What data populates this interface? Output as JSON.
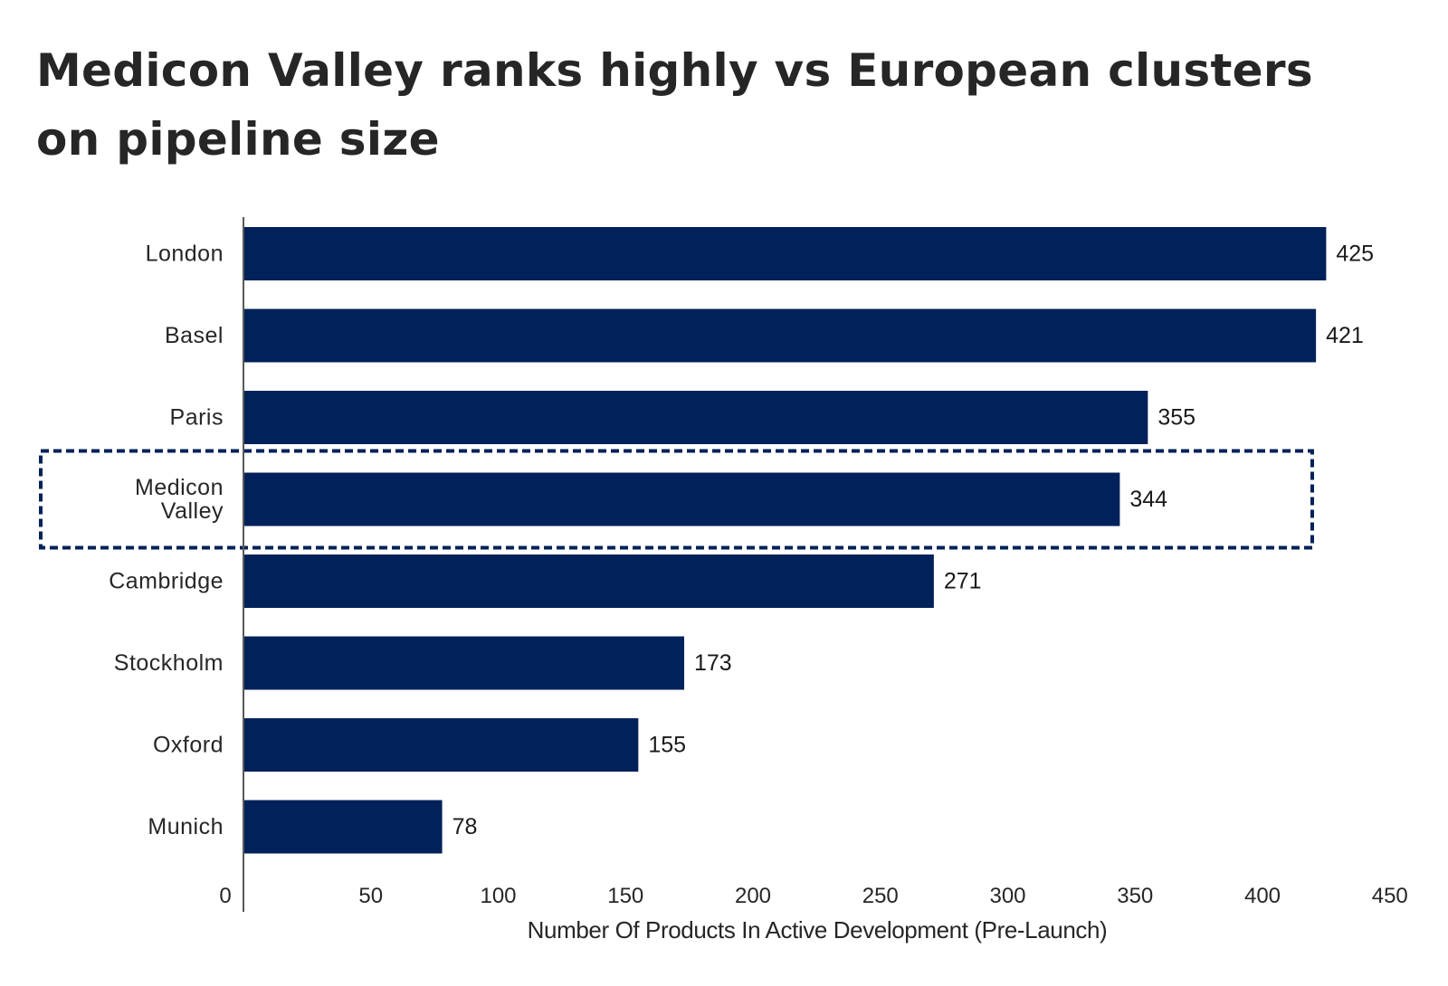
{
  "title": "Medicon Valley ranks highly vs European clusters on pipeline size",
  "chart_data": {
    "type": "bar",
    "orientation": "horizontal",
    "categories": [
      "London",
      "Basel",
      "Paris",
      "Medicon Valley",
      "Cambridge",
      "Stockholm",
      "Oxford",
      "Munich"
    ],
    "values": [
      425,
      421,
      355,
      344,
      271,
      173,
      155,
      78
    ],
    "xlabel": "Number Of Products In Active Development (Pre-Launch)",
    "ylabel": "",
    "xlim": [
      0,
      450
    ],
    "xticks": [
      0,
      50,
      100,
      150,
      200,
      250,
      300,
      350,
      400,
      450
    ],
    "highlight": "Medicon Valley",
    "bar_color": "#002159",
    "highlight_border_color": "#002159",
    "grid": false,
    "legend": "none"
  }
}
